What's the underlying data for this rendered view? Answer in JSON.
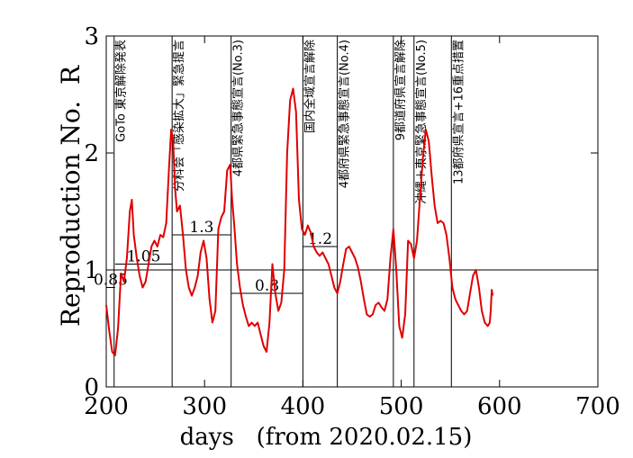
{
  "chart_data": {
    "type": "line",
    "title": "",
    "xlabel": "days   (from 2020.02.15)",
    "ylabel": "Reproduction No.  R",
    "xlim": [
      200,
      700
    ],
    "ylim": [
      0,
      3
    ],
    "xticks": [
      "200",
      "300",
      "400",
      "500",
      "600",
      "700"
    ],
    "yticks": [
      "0",
      "1",
      "2",
      "3"
    ],
    "grid": false,
    "series": [
      {
        "color": "#e00000",
        "x": [
          200,
          203,
          206,
          209,
          212,
          215,
          218,
          221,
          224,
          226,
          228,
          231,
          234,
          237,
          240,
          243,
          246,
          249,
          252,
          255,
          258,
          261,
          264,
          266,
          268,
          270,
          272,
          275,
          278,
          281,
          284,
          287,
          290,
          293,
          296,
          299,
          302,
          305,
          308,
          311,
          314,
          317,
          320,
          323,
          326,
          328,
          330,
          333,
          336,
          339,
          342,
          345,
          348,
          351,
          354,
          357,
          360,
          363,
          366,
          369,
          372,
          375,
          378,
          381,
          384,
          387,
          390,
          393,
          396,
          399,
          402,
          405,
          408,
          411,
          414,
          417,
          420,
          423,
          426,
          429,
          432,
          435,
          438,
          441,
          444,
          447,
          450,
          453,
          456,
          459,
          462,
          465,
          468,
          471,
          474,
          477,
          480,
          483,
          486,
          489,
          492,
          495,
          498,
          501,
          504,
          507,
          510,
          513,
          516,
          519,
          522,
          525,
          528,
          531,
          534,
          537,
          540,
          543,
          546,
          549,
          552,
          555,
          558,
          561,
          564,
          567,
          570,
          573,
          576,
          579,
          582,
          585,
          588,
          590,
          591,
          592,
          593
        ],
        "y": [
          0.7,
          0.48,
          0.3,
          0.27,
          0.5,
          0.97,
          0.9,
          1.1,
          1.5,
          1.6,
          1.3,
          1.1,
          0.95,
          0.85,
          0.9,
          1.05,
          1.2,
          1.25,
          1.2,
          1.3,
          1.28,
          1.4,
          1.9,
          2.2,
          2.1,
          1.7,
          1.5,
          1.55,
          1.3,
          1.0,
          0.85,
          0.78,
          0.85,
          0.95,
          1.15,
          1.25,
          1.1,
          0.75,
          0.55,
          0.65,
          1.35,
          1.45,
          1.5,
          1.85,
          1.9,
          1.6,
          1.4,
          1.05,
          0.85,
          0.7,
          0.6,
          0.52,
          0.55,
          0.52,
          0.55,
          0.45,
          0.35,
          0.3,
          0.55,
          1.05,
          0.8,
          0.65,
          0.72,
          1.0,
          2.0,
          2.45,
          2.55,
          2.35,
          1.6,
          1.35,
          1.3,
          1.38,
          1.32,
          1.2,
          1.15,
          1.12,
          1.15,
          1.1,
          1.05,
          0.95,
          0.85,
          0.8,
          0.9,
          1.05,
          1.18,
          1.2,
          1.15,
          1.1,
          1.02,
          0.9,
          0.75,
          0.62,
          0.6,
          0.62,
          0.7,
          0.72,
          0.68,
          0.65,
          0.75,
          1.1,
          1.35,
          1.0,
          0.52,
          0.42,
          0.62,
          1.25,
          1.22,
          1.1,
          1.25,
          1.6,
          1.95,
          2.2,
          2.1,
          1.8,
          1.55,
          1.4,
          1.42,
          1.4,
          1.3,
          1.1,
          0.85,
          0.75,
          0.7,
          0.65,
          0.62,
          0.65,
          0.8,
          0.95,
          1.0,
          0.85,
          0.65,
          0.55,
          0.52,
          0.55,
          0.65,
          0.83,
          0.78
        ]
      }
    ],
    "reference_lines": [
      {
        "y": 1.0,
        "label": ""
      }
    ],
    "event_markers": [
      {
        "x": 208,
        "label": "GoTo 東京解除発表"
      },
      {
        "x": 267,
        "label": "分科会「感染拡大」緊急提言"
      },
      {
        "x": 327,
        "label": "4都県緊急事態宣言(No.3)"
      },
      {
        "x": 400,
        "label": "国内全域宣言解除"
      },
      {
        "x": 435,
        "label": "4都府県緊急事態宣言(No.4)"
      },
      {
        "x": 492,
        "label": "9都道府県宣言解除"
      },
      {
        "x": 513,
        "label": "沖縄＋東京緊急事態宣言(No.5)"
      },
      {
        "x": 551,
        "label": "13都府県宣言+16重点措置"
      }
    ],
    "level_segments": [
      {
        "x1": 200,
        "x2": 209,
        "y": 0.85,
        "label": "0.85"
      },
      {
        "x1": 209,
        "x2": 267,
        "y": 1.05,
        "label": "1.05"
      },
      {
        "x1": 267,
        "x2": 327,
        "y": 1.3,
        "label": "1.3"
      },
      {
        "x1": 327,
        "x2": 400,
        "y": 0.8,
        "label": "0.8"
      },
      {
        "x1": 400,
        "x2": 435,
        "y": 1.2,
        "label": "1.2"
      }
    ]
  }
}
